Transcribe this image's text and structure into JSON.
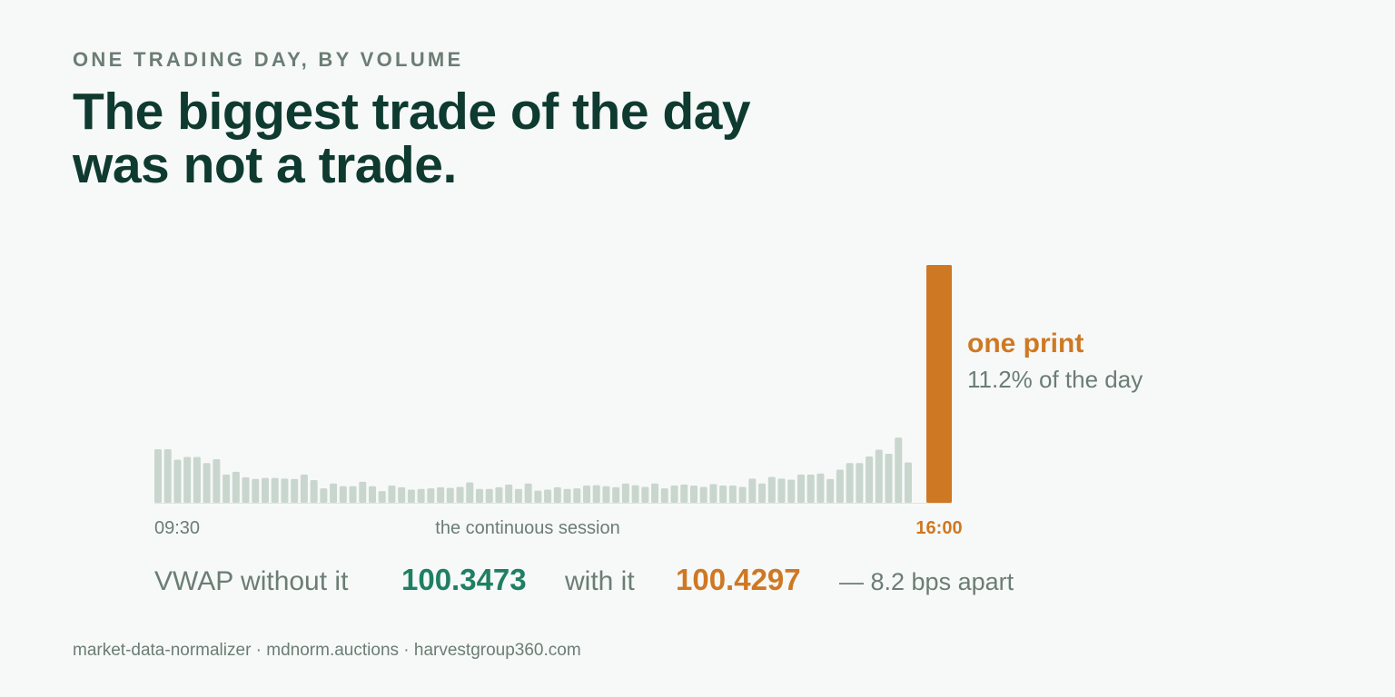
{
  "chart_data": {
    "type": "bar",
    "eyebrow": "ONE TRADING DAY, BY VOLUME",
    "title": [
      "The biggest trade of the day",
      "was not a trade."
    ],
    "categories": [
      "09:30",
      null,
      null,
      null,
      null,
      null,
      null,
      null,
      null,
      null,
      null,
      null,
      null,
      null,
      null,
      null,
      null,
      null,
      null,
      null,
      null,
      null,
      null,
      null,
      null,
      null,
      null,
      null,
      null,
      null,
      null,
      null,
      null,
      null,
      null,
      null,
      null,
      null,
      null,
      null,
      null,
      null,
      null,
      null,
      null,
      null,
      null,
      null,
      null,
      null,
      null,
      null,
      null,
      null,
      null,
      null,
      null,
      null,
      null,
      null,
      null,
      null,
      null,
      null,
      null,
      null,
      null,
      null,
      null,
      null,
      null,
      null,
      null,
      null,
      null,
      null,
      null,
      null,
      "16:00"
    ],
    "values": [
      2.52,
      2.52,
      2.03,
      2.16,
      2.16,
      1.87,
      2.05,
      1.33,
      1.46,
      1.2,
      1.12,
      1.17,
      1.17,
      1.14,
      1.12,
      1.33,
      1.07,
      0.68,
      0.91,
      0.78,
      0.78,
      0.99,
      0.78,
      0.55,
      0.81,
      0.73,
      0.62,
      0.65,
      0.68,
      0.73,
      0.7,
      0.75,
      0.96,
      0.65,
      0.65,
      0.73,
      0.86,
      0.65,
      0.91,
      0.57,
      0.62,
      0.73,
      0.65,
      0.68,
      0.81,
      0.83,
      0.78,
      0.73,
      0.91,
      0.83,
      0.75,
      0.91,
      0.68,
      0.81,
      0.86,
      0.81,
      0.75,
      0.88,
      0.81,
      0.81,
      0.75,
      1.14,
      0.91,
      1.22,
      1.14,
      1.09,
      1.33,
      1.33,
      1.38,
      1.12,
      1.56,
      1.87,
      1.87,
      2.18,
      2.5,
      2.31,
      3.07,
      1.9,
      11.2
    ],
    "color": "#c9d6ce",
    "highlight_color": "#cf7823",
    "x_caption": "the continuous session",
    "annotation": {
      "title": "one print",
      "text": "11.2% of the day"
    },
    "stats": {
      "without_label": "VWAP without it",
      "without": "100.3473",
      "with_label": "with it",
      "with": "100.4297",
      "note": "— 8.2 bps apart"
    },
    "footer": "market-data-normalizer · mdnorm.auctions · harvestgroup360.com"
  }
}
